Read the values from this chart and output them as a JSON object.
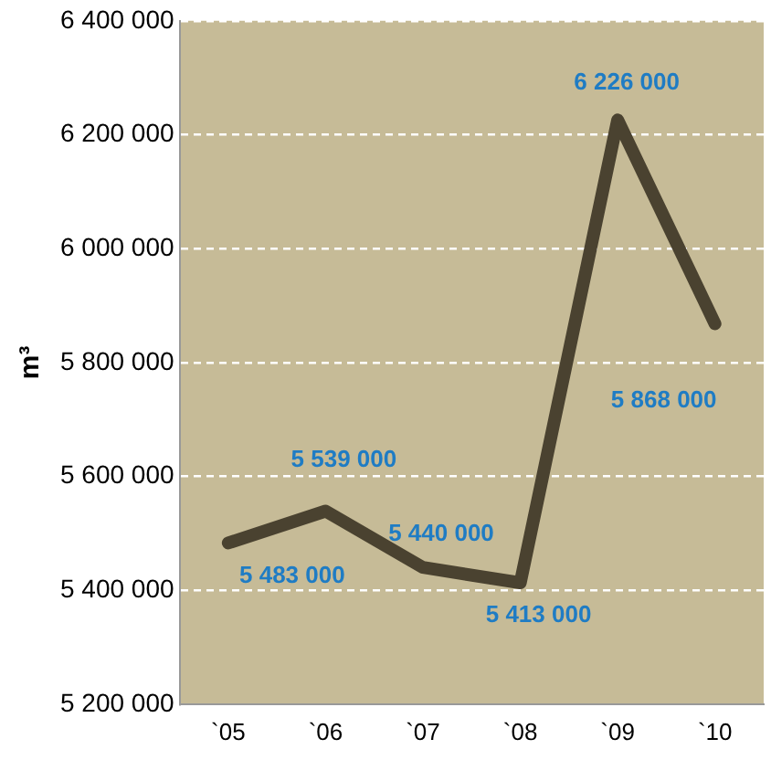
{
  "chart_data": {
    "type": "line",
    "ylabel": "m³",
    "categories": [
      "`05",
      "`06",
      "`07",
      "`08",
      "`09",
      "`10"
    ],
    "series": [
      {
        "color": "#4a4230",
        "values": [
          5483000,
          5539000,
          5440000,
          5413000,
          6226000,
          5868000
        ],
        "value_labels": [
          "5 483 000",
          "5 539 000",
          "5 440 000",
          "5 413 000",
          "6 226 000",
          "5 868 000"
        ]
      }
    ],
    "ylim": [
      5200000,
      6400000
    ],
    "yticks": [
      {
        "value": 5200000,
        "label": "5 200 000"
      },
      {
        "value": 5400000,
        "label": "5 400 000"
      },
      {
        "value": 5600000,
        "label": "5 600 000"
      },
      {
        "value": 5800000,
        "label": "5 800 000"
      },
      {
        "value": 6000000,
        "label": "6 000 000"
      },
      {
        "value": 6200000,
        "label": "6 200 000"
      },
      {
        "value": 6400000,
        "label": "6 400 000"
      }
    ],
    "grid": "y",
    "legend": false,
    "marker": "none",
    "line_style": "solid"
  }
}
